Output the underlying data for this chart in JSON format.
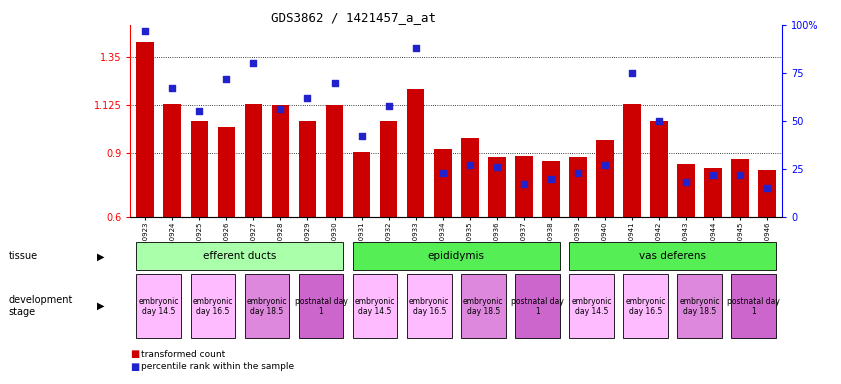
{
  "title": "GDS3862 / 1421457_a_at",
  "samples": [
    "GSM560923",
    "GSM560924",
    "GSM560925",
    "GSM560926",
    "GSM560927",
    "GSM560928",
    "GSM560929",
    "GSM560930",
    "GSM560931",
    "GSM560932",
    "GSM560933",
    "GSM560934",
    "GSM560935",
    "GSM560936",
    "GSM560937",
    "GSM560938",
    "GSM560939",
    "GSM560940",
    "GSM560941",
    "GSM560942",
    "GSM560943",
    "GSM560944",
    "GSM560945",
    "GSM560946"
  ],
  "red_values": [
    1.42,
    1.13,
    1.05,
    1.02,
    1.13,
    1.125,
    1.05,
    1.125,
    0.905,
    1.05,
    1.2,
    0.92,
    0.97,
    0.88,
    0.885,
    0.86,
    0.88,
    0.96,
    1.13,
    1.05,
    0.85,
    0.83,
    0.87,
    0.82
  ],
  "blue_values_pct": [
    97,
    67,
    55,
    72,
    80,
    56,
    62,
    70,
    42,
    58,
    88,
    23,
    27,
    26,
    17,
    20,
    23,
    27,
    75,
    50,
    18,
    22,
    22,
    15
  ],
  "ylim_left": [
    0.6,
    1.5
  ],
  "ylim_right": [
    0,
    100
  ],
  "yticks_left": [
    0.6,
    0.9,
    1.125,
    1.35
  ],
  "yticks_right": [
    0,
    25,
    50,
    75,
    100
  ],
  "ytick_labels_left": [
    "0.6",
    "0.9",
    "1.125",
    "1.35"
  ],
  "ytick_labels_right": [
    "0",
    "25",
    "50",
    "75",
    "100%"
  ],
  "hlines": [
    0.9,
    1.125,
    1.35
  ],
  "bar_color": "#cc0000",
  "dot_color": "#2222cc",
  "bar_width": 0.65,
  "tissue_groups": [
    {
      "label": "efferent ducts",
      "start": 0,
      "end": 7,
      "color": "#aaffaa"
    },
    {
      "label": "epididymis",
      "start": 8,
      "end": 15,
      "color": "#55ee55"
    },
    {
      "label": "vas deferens",
      "start": 16,
      "end": 23,
      "color": "#55ee55"
    }
  ],
  "dev_stage_groups": [
    {
      "label": "embryonic\nday 14.5",
      "start": 0,
      "end": 1,
      "color": "#ffbbff"
    },
    {
      "label": "embryonic\nday 16.5",
      "start": 2,
      "end": 3,
      "color": "#ffbbff"
    },
    {
      "label": "embryonic\nday 18.5",
      "start": 4,
      "end": 5,
      "color": "#dd88dd"
    },
    {
      "label": "postnatal day\n1",
      "start": 6,
      "end": 7,
      "color": "#cc66cc"
    },
    {
      "label": "embryonic\nday 14.5",
      "start": 8,
      "end": 9,
      "color": "#ffbbff"
    },
    {
      "label": "embryonic\nday 16.5",
      "start": 10,
      "end": 11,
      "color": "#ffbbff"
    },
    {
      "label": "embryonic\nday 18.5",
      "start": 12,
      "end": 13,
      "color": "#dd88dd"
    },
    {
      "label": "postnatal day\n1",
      "start": 14,
      "end": 15,
      "color": "#cc66cc"
    },
    {
      "label": "embryonic\nday 14.5",
      "start": 16,
      "end": 17,
      "color": "#ffbbff"
    },
    {
      "label": "embryonic\nday 16.5",
      "start": 18,
      "end": 19,
      "color": "#ffbbff"
    },
    {
      "label": "embryonic\nday 18.5",
      "start": 20,
      "end": 21,
      "color": "#dd88dd"
    },
    {
      "label": "postnatal day\n1",
      "start": 22,
      "end": 23,
      "color": "#cc66cc"
    }
  ],
  "background_color": "#ffffff"
}
